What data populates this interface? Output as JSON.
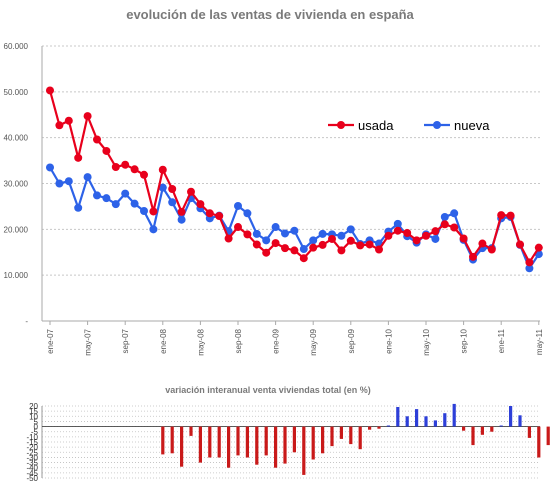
{
  "chart_data": [
    {
      "type": "line",
      "title": "evolución de las ventas de vivienda en españa",
      "xlabel": "",
      "ylabel": "",
      "ylim": [
        0,
        60000
      ],
      "y_ticks": [
        "-",
        "10.000",
        "20.000",
        "30.000",
        "40.000",
        "50.000",
        "60.000"
      ],
      "x_tick_labels": [
        "ene-07",
        "may-07",
        "sep-07",
        "ene-08",
        "may-08",
        "sep-08",
        "ene-09",
        "may-09",
        "sep-09",
        "ene-10",
        "may-10",
        "sep-10",
        "ene-11",
        "may-11"
      ],
      "x_tick_start": 0,
      "x_tick_step": 4,
      "grid": "horizontal",
      "legend_position": "right",
      "series": [
        {
          "name": "usada",
          "color": "#e8001c",
          "values": [
            50300,
            42700,
            43700,
            35600,
            44700,
            39600,
            37100,
            33600,
            34100,
            33100,
            31900,
            23900,
            33000,
            28800,
            23800,
            28200,
            25500,
            23500,
            22900,
            18000,
            20500,
            18900,
            16700,
            14900,
            17000,
            15900,
            15400,
            13700,
            16000,
            16600,
            17900,
            15400,
            17500,
            16500,
            16700,
            15600,
            18600,
            19700,
            19200,
            17600,
            18600,
            19600,
            21100,
            20400,
            18000,
            14000,
            16900,
            15600,
            23100,
            23000,
            16700,
            12800,
            16000
          ]
        },
        {
          "name": "nueva",
          "color": "#2d62e8",
          "values": [
            33500,
            30000,
            30500,
            24700,
            31400,
            27400,
            26800,
            25500,
            27800,
            25600,
            24000,
            20000,
            29100,
            25900,
            22100,
            26800,
            24600,
            22400,
            23000,
            19600,
            25100,
            23500,
            19000,
            17600,
            20500,
            19100,
            19700,
            15700,
            17600,
            19000,
            18900,
            18600,
            20000,
            16800,
            17600,
            16900,
            19500,
            21200,
            18500,
            17100,
            18900,
            17900,
            22700,
            23500,
            17700,
            13400,
            15900,
            15900,
            22400,
            22700,
            16600,
            11500,
            14600
          ]
        }
      ]
    },
    {
      "type": "bar",
      "title": "variación interanual venta viviendas total (en %)",
      "xlabel": "",
      "ylabel": "",
      "ylim": [
        -50,
        20
      ],
      "y_ticks": [
        "20",
        "15",
        "10",
        "5",
        "0",
        "-5",
        "-10",
        "-15",
        "-20",
        "-25",
        "-30",
        "-35",
        "-40",
        "-45",
        "-50"
      ],
      "x_start_index": 12,
      "positive_color": "#2d3fd8",
      "negative_color": "#c91a1a",
      "values": [
        -27,
        -26,
        -39,
        -9,
        -35,
        -30,
        -30,
        -40,
        -28,
        -30,
        -37,
        -28,
        -40,
        -36,
        -25,
        -47,
        -32,
        -26,
        -19,
        -12,
        -17,
        -22,
        -3,
        -2,
        1,
        19,
        10,
        17,
        10,
        6,
        13,
        22,
        -4,
        -18,
        -8,
        -5,
        1,
        20,
        11,
        -11,
        -30,
        -18
      ]
    }
  ]
}
